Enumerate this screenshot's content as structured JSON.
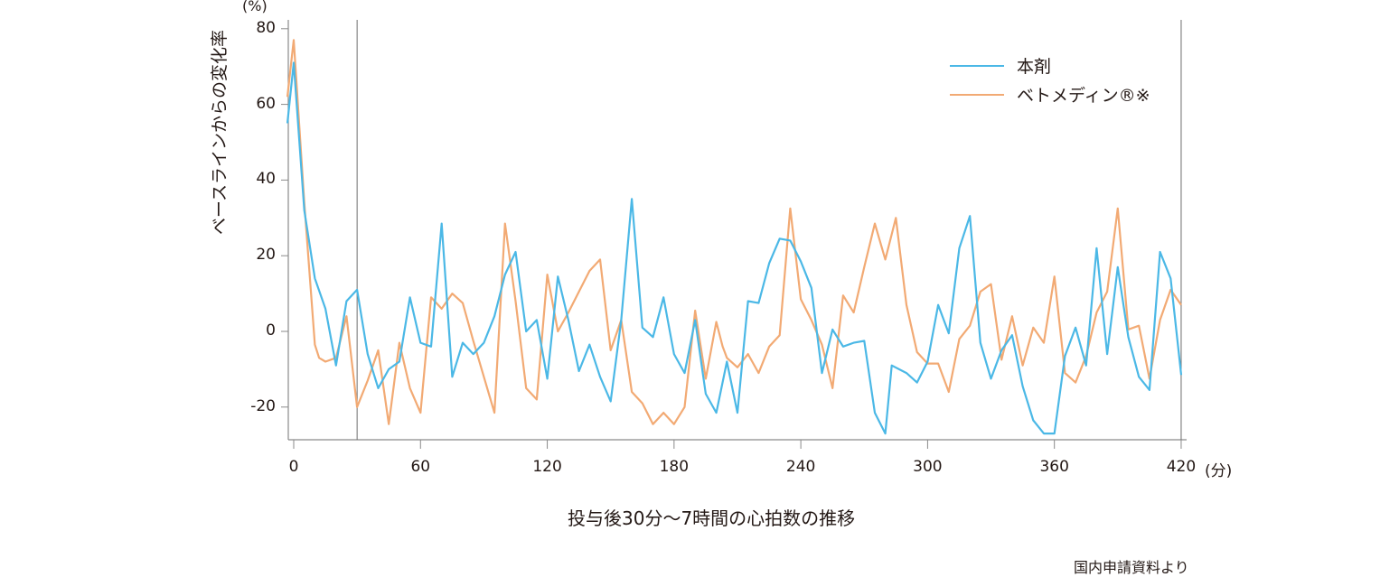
{
  "chart_data": {
    "type": "line",
    "title": "投与後30分〜7時間の心拍数の推移",
    "xlabel": "(分)",
    "ylabel": "ベースラインからの変化率",
    "y_unit": "(%)",
    "xlim": [
      -3,
      422
    ],
    "ylim": [
      -28.6,
      82
    ],
    "x_ticks": [
      0,
      60,
      120,
      180,
      240,
      300,
      360,
      420
    ],
    "x_tick_labels": [
      "0",
      "60",
      "120",
      "180",
      "240",
      "300",
      "360",
      "420"
    ],
    "y_ticks": [
      -20,
      0,
      20,
      40,
      60,
      80
    ],
    "y_tick_labels": [
      "-20",
      "0",
      "20",
      "40",
      "60",
      "80"
    ],
    "grid": false,
    "reference_lines_x": [
      30,
      420
    ],
    "legend_position": "upper right",
    "series": [
      {
        "name": "本剤",
        "color": "#4bb8e6",
        "x": [
          -3,
          0,
          5,
          10,
          15,
          20,
          25,
          30,
          35,
          40,
          45,
          50,
          55,
          60,
          65,
          70,
          75,
          80,
          85,
          90,
          95,
          100,
          105,
          110,
          115,
          120,
          125,
          130,
          135,
          140,
          145,
          150,
          155,
          160,
          165,
          170,
          175,
          180,
          185,
          190,
          195,
          200,
          205,
          210,
          215,
          220,
          225,
          230,
          235,
          240,
          245,
          250,
          255,
          260,
          265,
          270,
          275,
          280,
          283,
          290,
          295,
          300,
          305,
          310,
          315,
          320,
          325,
          330,
          335,
          340,
          345,
          350,
          355,
          360,
          365,
          370,
          375,
          380,
          385,
          390,
          395,
          400,
          405,
          410,
          415,
          420
        ],
        "values": [
          55,
          71,
          32,
          14,
          6,
          -9,
          8,
          11,
          -6,
          -15,
          -10,
          -8,
          9,
          -3,
          -4,
          28.5,
          -12,
          -3,
          -6,
          -3,
          4,
          15,
          21,
          0,
          3,
          -12.5,
          14.5,
          3,
          -10.5,
          -3.5,
          -12,
          -18.5,
          3,
          35,
          1,
          -1.5,
          9,
          -6,
          -11,
          3,
          -16.5,
          -21.5,
          -8,
          -21.5,
          8,
          7.5,
          18,
          24.5,
          24,
          18.5,
          11.5,
          -11,
          0.5,
          -4,
          -3,
          -2.5,
          -21.5,
          -27,
          -9,
          -11,
          -13.5,
          -8,
          7,
          -0.5,
          22,
          30.5,
          -3,
          -12.5,
          -5,
          -1,
          -14.5,
          -23.5,
          -27,
          -27,
          -6.5,
          1,
          -9,
          22,
          -6,
          17,
          -1.5,
          -12,
          -15.5,
          21,
          14,
          -11.5
        ]
      },
      {
        "name": "ベトメディン®※",
        "color": "#f2aa74",
        "x": [
          -3,
          0,
          5,
          10,
          12,
          15,
          20,
          25,
          30,
          35,
          40,
          45,
          50,
          55,
          60,
          65,
          70,
          75,
          80,
          85,
          90,
          95,
          100,
          105,
          110,
          115,
          120,
          125,
          130,
          135,
          140,
          145,
          150,
          155,
          160,
          165,
          170,
          175,
          180,
          185,
          190,
          195,
          200,
          203,
          205,
          210,
          215,
          220,
          225,
          230,
          235,
          240,
          245,
          250,
          255,
          260,
          265,
          270,
          275,
          280,
          285,
          290,
          295,
          300,
          305,
          310,
          315,
          320,
          325,
          330,
          335,
          340,
          345,
          350,
          355,
          360,
          365,
          370,
          375,
          380,
          385,
          390,
          395,
          400,
          405,
          410,
          415,
          420
        ],
        "values": [
          62,
          77,
          34,
          -3.5,
          -7,
          -8,
          -7,
          4,
          -20,
          -13,
          -5,
          -24.5,
          -3,
          -15,
          -21.5,
          9,
          6,
          10,
          7.5,
          -2.5,
          -12,
          -21.5,
          28.5,
          8,
          -15,
          -18,
          15,
          0,
          5,
          10.5,
          16,
          19,
          -5,
          3,
          -16,
          -19,
          -24.5,
          -21.5,
          -24.5,
          -20,
          5.5,
          -12.5,
          2.5,
          -4,
          -7,
          -9.5,
          -6,
          -11,
          -4,
          -1,
          32.5,
          8.5,
          3,
          -3.5,
          -15,
          9.5,
          5,
          17,
          28.5,
          19,
          30,
          7,
          -5.5,
          -8.5,
          -8.5,
          -16,
          -2,
          1.5,
          10.5,
          12.5,
          -7.5,
          4,
          -9,
          1,
          -3,
          14.5,
          -11,
          -13.5,
          -6.5,
          5,
          10.5,
          32.5,
          0.5,
          1.5,
          -12.5,
          3,
          11,
          7
        ]
      }
    ]
  },
  "labels": {
    "y_unit": "(%)",
    "y_axis_title": "ベースラインからの変化率",
    "x_unit": "(分)",
    "caption": "投与後30分〜7時間の心拍数の推移",
    "source": "国内申請資料より",
    "legend": [
      "本剤",
      "ベトメディン®※"
    ]
  },
  "colors": {
    "axis": "#8a8a8a",
    "text": "#231815",
    "series_a": "#4bb8e6",
    "series_b": "#f2aa74"
  }
}
